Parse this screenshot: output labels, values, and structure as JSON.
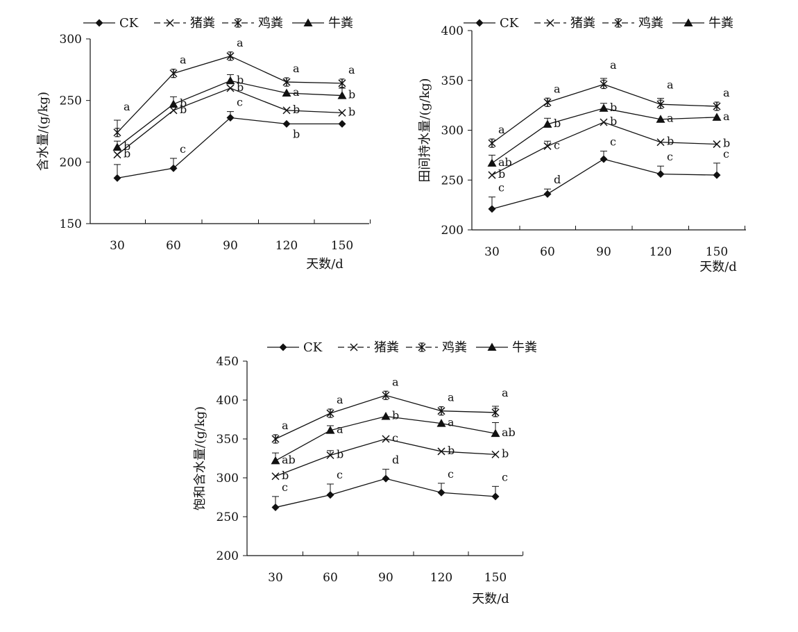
{
  "chart_data": [
    {
      "type": "line",
      "ylabel": "含水量/(g/kg)",
      "xlabel": "天数/d",
      "categories": [
        "30",
        "60",
        "90",
        "120",
        "150"
      ],
      "ylim": [
        150,
        300
      ],
      "yticks": [
        150,
        200,
        250,
        300
      ],
      "legend_position": "top",
      "series": [
        {
          "name": "CK",
          "marker": "diamond",
          "values": [
            187,
            195,
            236,
            231,
            231
          ],
          "err": [
            11,
            8,
            5,
            0,
            0
          ],
          "letters": [
            "",
            "c",
            "c",
            "b",
            ""
          ]
        },
        {
          "name": "猪粪",
          "marker": "x",
          "values": [
            206,
            242,
            260,
            242,
            240
          ],
          "err": [
            0,
            0,
            0,
            0,
            0
          ],
          "letters": [
            "b",
            "b",
            "b",
            "b",
            "b"
          ]
        },
        {
          "name": "鸡粪",
          "marker": "asterisk",
          "values": [
            224,
            272,
            286,
            265,
            264
          ],
          "err": [
            10,
            0,
            0,
            0,
            0
          ],
          "letters": [
            "a",
            "a",
            "a",
            "a",
            "a"
          ]
        },
        {
          "name": "牛粪",
          "marker": "triangle",
          "values": [
            212,
            247,
            266,
            256,
            254
          ],
          "err": [
            5,
            6,
            5,
            0,
            6
          ],
          "letters": [
            "b",
            "b",
            "b",
            "a",
            "b"
          ]
        }
      ]
    },
    {
      "type": "line",
      "ylabel": "田间持水量/(g/kg)",
      "xlabel": "天数/d",
      "categories": [
        "30",
        "60",
        "90",
        "120",
        "150"
      ],
      "ylim": [
        200,
        400
      ],
      "yticks": [
        200,
        250,
        300,
        350,
        400
      ],
      "legend_position": "top",
      "series": [
        {
          "name": "CK",
          "marker": "diamond",
          "values": [
            221,
            236,
            271,
            256,
            255
          ],
          "err": [
            12,
            5,
            8,
            8,
            12
          ],
          "letters": [
            "c",
            "d",
            "c",
            "c",
            "c"
          ]
        },
        {
          "name": "猪粪",
          "marker": "x",
          "values": [
            255,
            284,
            308,
            288,
            286
          ],
          "err": [
            0,
            5,
            0,
            0,
            0
          ],
          "letters": [
            "b",
            "c",
            "b",
            "b",
            "b"
          ]
        },
        {
          "name": "鸡粪",
          "marker": "asterisk",
          "values": [
            287,
            328,
            346,
            326,
            324
          ],
          "err": [
            0,
            0,
            6,
            6,
            0
          ],
          "letters": [
            "a",
            "a",
            "a",
            "a",
            "a"
          ]
        },
        {
          "name": "牛粪",
          "marker": "triangle",
          "values": [
            267,
            306,
            322,
            311,
            313
          ],
          "err": [
            8,
            6,
            5,
            0,
            0
          ],
          "letters": [
            "ab",
            "b",
            "b",
            "a",
            "a"
          ]
        }
      ]
    },
    {
      "type": "line",
      "ylabel": "饱和含水量/(g/kg)",
      "xlabel": "天数/d",
      "categories": [
        "30",
        "60",
        "90",
        "120",
        "150"
      ],
      "ylim": [
        200,
        450
      ],
      "yticks": [
        200,
        250,
        300,
        350,
        400,
        450
      ],
      "legend_position": "top",
      "series": [
        {
          "name": "CK",
          "marker": "diamond",
          "values": [
            262,
            278,
            299,
            281,
            276
          ],
          "err": [
            14,
            14,
            12,
            12,
            13
          ],
          "letters": [
            "c",
            "c",
            "d",
            "c",
            "c"
          ]
        },
        {
          "name": "猪粪",
          "marker": "x",
          "values": [
            302,
            329,
            350,
            334,
            330
          ],
          "err": [
            0,
            6,
            0,
            0,
            0
          ],
          "letters": [
            "b",
            "b",
            "c",
            "b",
            "b"
          ]
        },
        {
          "name": "鸡粪",
          "marker": "asterisk",
          "values": [
            350,
            383,
            406,
            386,
            384
          ],
          "err": [
            0,
            0,
            0,
            0,
            8
          ],
          "letters": [
            "a",
            "a",
            "a",
            "a",
            "a"
          ]
        },
        {
          "name": "牛粪",
          "marker": "triangle",
          "values": [
            322,
            361,
            379,
            370,
            357
          ],
          "err": [
            10,
            6,
            0,
            0,
            14
          ],
          "letters": [
            "ab",
            "a",
            "b",
            "a",
            "ab"
          ]
        }
      ]
    }
  ]
}
